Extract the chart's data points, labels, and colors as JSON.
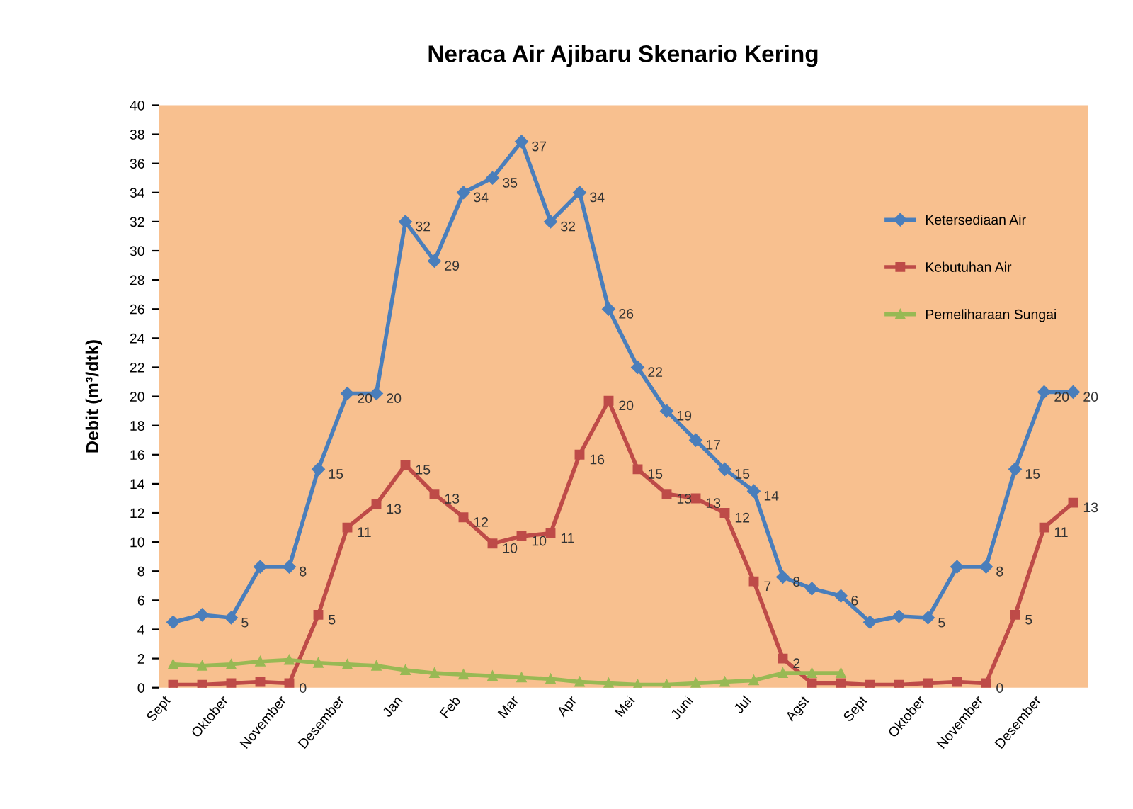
{
  "chart_data": {
    "type": "line",
    "title": "Neraca Air Ajibaru Skenario Kering",
    "ylabel": "Debit (m³/dtk)",
    "categories": [
      "Sept",
      null,
      "Oktober",
      null,
      "November",
      null,
      "Desember",
      null,
      "Jan",
      null,
      "Feb",
      null,
      "Mar",
      null,
      "Apr",
      null,
      "Mei",
      null,
      "Juni",
      null,
      "Jul",
      null,
      "Agst",
      null,
      "Sept",
      null,
      "Oktober",
      null,
      "November",
      null,
      "Desember",
      null
    ],
    "ylim": [
      0,
      40
    ],
    "yticks": [
      0,
      2,
      4,
      6,
      8,
      10,
      12,
      14,
      16,
      18,
      20,
      22,
      24,
      26,
      28,
      30,
      32,
      34,
      36,
      38,
      40
    ],
    "grid": false,
    "legend": "right",
    "line_style": "solid",
    "series": [
      {
        "name": "Ketersediaan Air",
        "color": "#4a7ebb",
        "marker": "diamond",
        "values": [
          4.5,
          5.0,
          4.8,
          8.3,
          8.3,
          15,
          20.2,
          20.2,
          32,
          29.3,
          34,
          35,
          37.5,
          32,
          34,
          26,
          22,
          19,
          17,
          15,
          13.5,
          7.6,
          6.8,
          6.3,
          4.5,
          4.9,
          4.8,
          8.3,
          8.3,
          15,
          20.3,
          20.3
        ],
        "value_labels": [
          null,
          null,
          "5",
          null,
          "8",
          "15",
          "20",
          "20",
          "32",
          "29",
          "34",
          "35",
          "37",
          "32",
          "34",
          "26",
          "22",
          "19",
          "17",
          "15",
          "14",
          "8",
          null,
          "6",
          null,
          null,
          "5",
          null,
          "8",
          "15",
          "20",
          "20"
        ]
      },
      {
        "name": "Kebutuhan Air",
        "color": "#be4b48",
        "marker": "square",
        "values": [
          0.2,
          0.2,
          0.3,
          0.4,
          0.3,
          5,
          11,
          12.6,
          15.3,
          13.3,
          11.7,
          9.9,
          10.4,
          10.6,
          16,
          19.7,
          15,
          13.3,
          13,
          12,
          7.3,
          2,
          0.3,
          0.3,
          0.2,
          0.2,
          0.3,
          0.4,
          0.3,
          5,
          11,
          12.7
        ],
        "value_labels": [
          null,
          null,
          null,
          null,
          "0",
          "5",
          "11",
          "13",
          "15",
          "13",
          "12",
          "10",
          "10",
          "11",
          "16",
          "20",
          "15",
          "13",
          "13",
          "12",
          "7",
          "2",
          null,
          null,
          null,
          null,
          null,
          null,
          "0",
          "5",
          "11",
          "13"
        ]
      },
      {
        "name": "Pemeliharaan Sungai",
        "color": "#98b954",
        "marker": "triangle",
        "values": [
          1.6,
          1.5,
          1.6,
          1.8,
          1.9,
          1.7,
          1.6,
          1.5,
          1.2,
          1.0,
          0.9,
          0.8,
          0.7,
          0.6,
          0.4,
          0.3,
          0.2,
          0.2,
          0.3,
          0.4,
          0.5,
          1.0,
          1.0,
          1.0,
          null,
          null,
          null,
          null,
          null,
          null,
          null,
          null
        ]
      }
    ]
  }
}
